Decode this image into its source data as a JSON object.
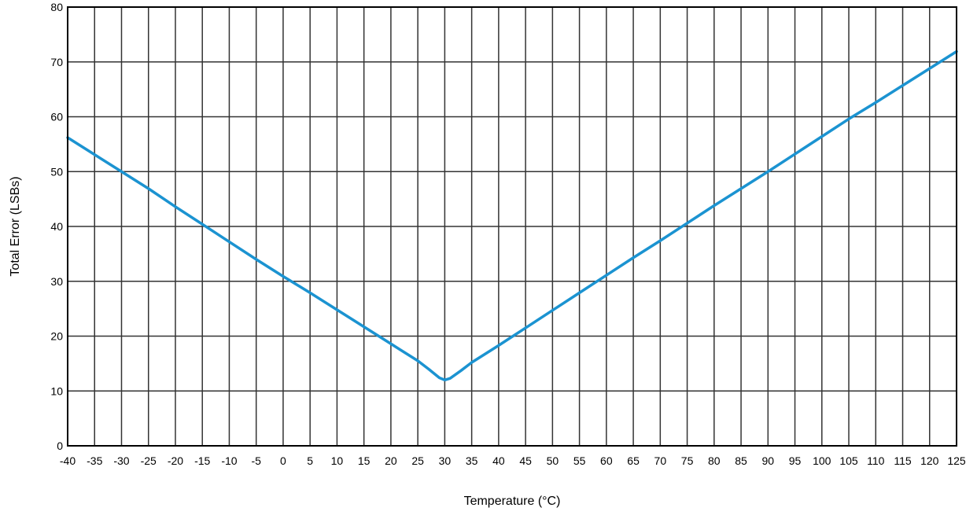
{
  "chart_data": {
    "type": "line",
    "title": "",
    "xlabel": "Temperature (°C)",
    "ylabel": "Total Error (LSBs)",
    "xlim": [
      -40,
      125
    ],
    "ylim": [
      0,
      80
    ],
    "x_ticks": [
      "-40",
      "-35",
      "-30",
      "-25",
      "-20",
      "-15",
      "-10",
      "-5",
      "0",
      "5",
      "10",
      "15",
      "20",
      "25",
      "30",
      "35",
      "40",
      "45",
      "50",
      "55",
      "60",
      "65",
      "70",
      "75",
      "80",
      "85",
      "90",
      "95",
      "100",
      "105",
      "110",
      "115",
      "120",
      "125"
    ],
    "y_ticks": [
      "0",
      "10",
      "20",
      "30",
      "40",
      "50",
      "60",
      "70",
      "80"
    ],
    "grid": true,
    "grid_x": true,
    "grid_y": true,
    "legend": "none",
    "series": [
      {
        "color": "#1b93d1",
        "x": [
          -40,
          -35,
          -30,
          -25,
          -20,
          -15,
          -10,
          -5,
          0,
          5,
          10,
          15,
          20,
          25,
          27,
          29,
          30,
          31,
          33,
          35,
          40,
          45,
          50,
          55,
          60,
          65,
          70,
          75,
          80,
          85,
          90,
          95,
          100,
          105,
          110,
          115,
          120,
          125
        ],
        "y": [
          56.2,
          53.1,
          50.0,
          46.9,
          43.6,
          40.4,
          37.2,
          34.0,
          30.9,
          27.9,
          24.8,
          21.7,
          18.6,
          15.5,
          14.0,
          12.4,
          12.0,
          12.3,
          13.7,
          15.2,
          18.3,
          21.5,
          24.7,
          27.9,
          31.1,
          34.3,
          37.4,
          40.6,
          43.8,
          46.9,
          50.0,
          53.2,
          56.4,
          59.6,
          62.6,
          65.7,
          68.8,
          71.9
        ]
      }
    ]
  },
  "style": {
    "line_color": "#1b93d1",
    "grid_color": "#333333",
    "axis_color": "#000000",
    "background": "#ffffff"
  }
}
